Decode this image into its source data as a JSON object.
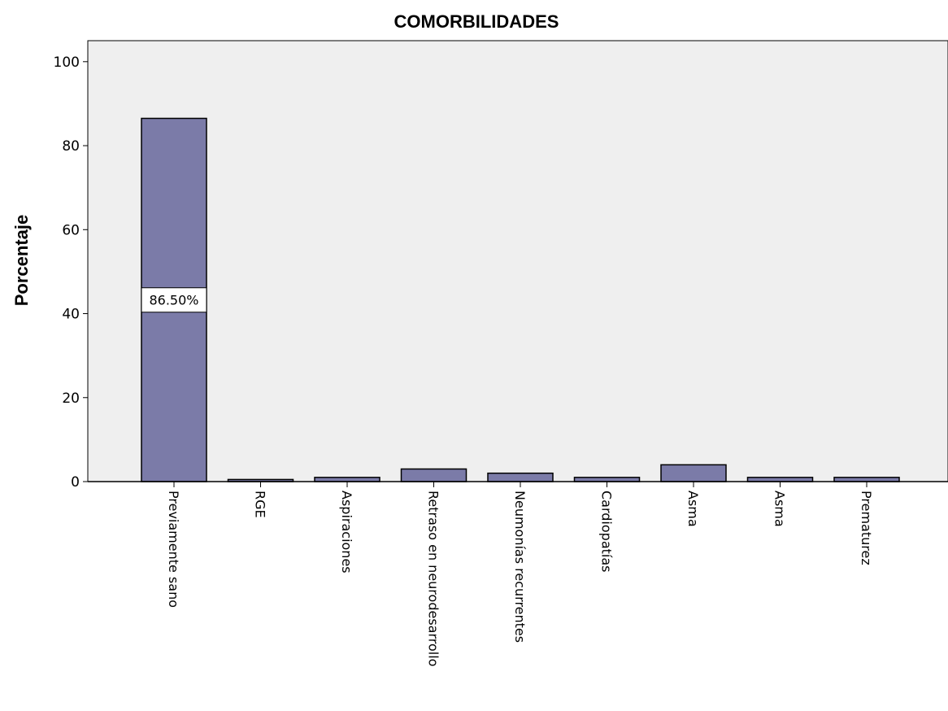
{
  "chart_data": {
    "type": "bar",
    "title": "COMORBILIDADES",
    "xlabel": "",
    "ylabel": "Porcentaje",
    "ylim": [
      0,
      105
    ],
    "yticks": [
      0,
      20,
      40,
      60,
      80,
      100
    ],
    "grid": false,
    "categories": [
      "Previamente sano",
      "RGE",
      "Aspiraciones",
      "Retraso en neurodesarrollo",
      "Neumonías recurrentes",
      "Cardiopatías",
      "Asma",
      "Asma",
      "Prematurez"
    ],
    "values": [
      86.5,
      0.5,
      1.0,
      3.0,
      2.0,
      1.0,
      4.0,
      1.0,
      1.0
    ],
    "data_labels": [
      "86.50%",
      "",
      "",
      "",
      "",
      "",
      "",
      "",
      ""
    ],
    "colors": {
      "bar_fill": "#7b7ba8",
      "plot_background": "#efefef",
      "bar_stroke": "#000000"
    }
  }
}
